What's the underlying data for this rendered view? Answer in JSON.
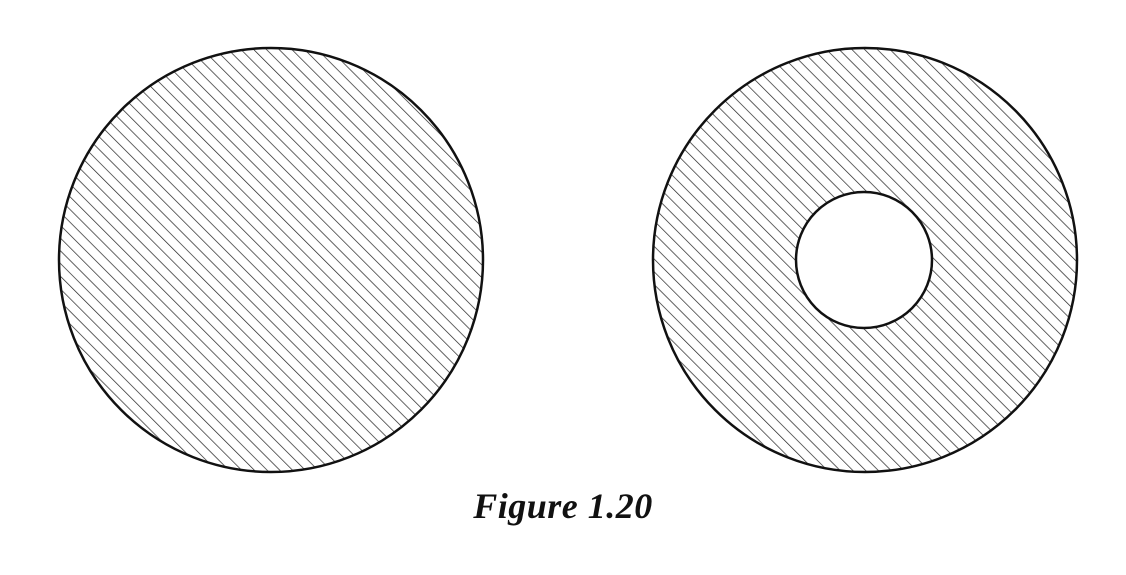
{
  "figure": {
    "caption": "Figure 1.20",
    "colors": {
      "stroke": "#111111",
      "hatch": "#222222",
      "background": "#ffffff"
    },
    "shapes": [
      {
        "name": "solid-disk",
        "hatched": true,
        "has_hole": false
      },
      {
        "name": "annulus",
        "hatched": true,
        "has_hole": true
      }
    ]
  }
}
